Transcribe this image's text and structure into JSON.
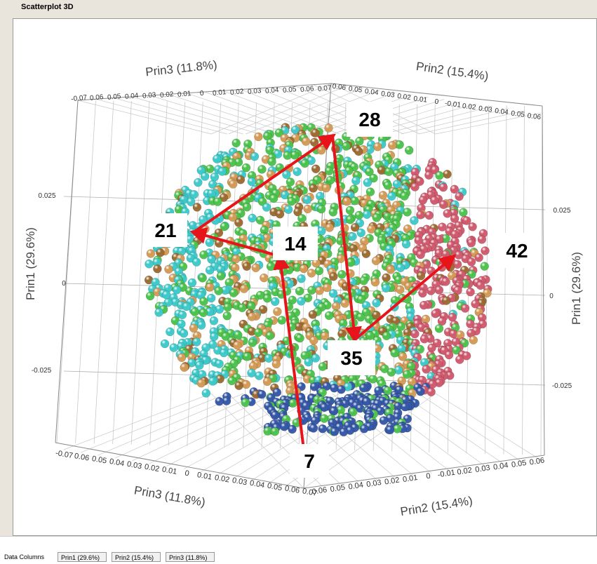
{
  "window": {
    "title": "Scatterplot 3D"
  },
  "footer": {
    "label": "Data Columns",
    "columns": [
      "Prin1 (29.6%)",
      "Prin2 (15.4%)",
      "Prin3 (11.8%)"
    ]
  },
  "chart_data": {
    "type": "scatter",
    "axes": {
      "prin1": {
        "label": "Prin1 (29.6%)",
        "ticks": [
          "0.025",
          "0",
          "-0.025"
        ]
      },
      "prin2": {
        "label": "Prin2 (15.4%)",
        "ticks_top": [
          "0.06",
          "0.05",
          "0.04",
          "0.03",
          "0.02",
          "0.01",
          "0",
          "-0.01",
          "0.02",
          "0.03",
          "0.04",
          "0.05",
          "0.06"
        ],
        "ticks_bottom": [
          "0.06",
          "0.05",
          "0.04",
          "0.03",
          "0.02",
          "0.01",
          "0",
          "-0.01",
          "0.02",
          "0.03",
          "0.04",
          "0.05",
          "0.06"
        ]
      },
      "prin3": {
        "label": "Prin3 (11.8%)",
        "ticks_top": [
          "-0.07",
          "0.06",
          "0.05",
          "0.04",
          "0.03",
          "0.02",
          "0.01",
          "0",
          "0.01",
          "0.02",
          "0.03",
          "0.04",
          "0.05",
          "0.06",
          "0.07"
        ],
        "ticks_bottom": [
          "-0.07",
          "0.06",
          "0.05",
          "0.04",
          "0.03",
          "0.02",
          "0.01",
          "0",
          "0.01",
          "0.02",
          "0.03",
          "0.04",
          "0.05",
          "0.06",
          "0.07"
        ]
      }
    },
    "series_colors": {
      "cyan": "#3ec9c9",
      "tan": "#d39a55",
      "green": "#4cc24c",
      "pink": "#d05a6e",
      "blue": "#3558a8",
      "brown": "#9c6b32"
    },
    "annotations": [
      "7",
      "14",
      "21",
      "28",
      "35",
      "42"
    ],
    "arrow_color": "#e8141b"
  }
}
